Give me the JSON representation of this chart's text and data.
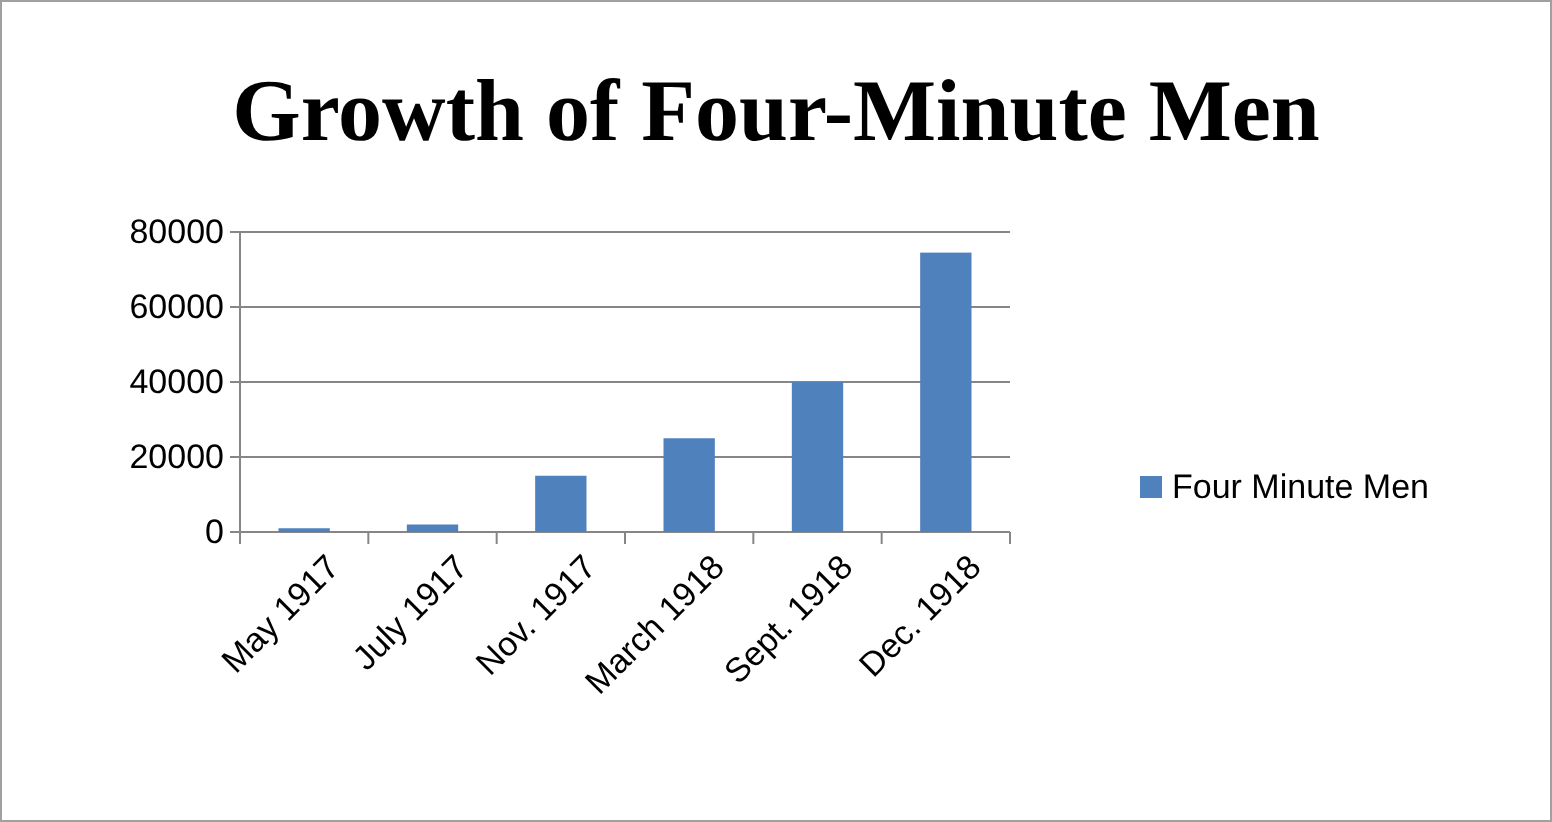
{
  "chart_data": {
    "type": "bar",
    "title": "Growth of Four-Minute Men",
    "categories": [
      "May 1917",
      "July 1917",
      "Nov. 1917",
      "March 1918",
      "Sept. 1918",
      "Dec. 1918"
    ],
    "series": [
      {
        "name": "Four Minute Men",
        "color": "#4f81bd",
        "values": [
          1000,
          2000,
          15000,
          25000,
          40000,
          74500
        ]
      }
    ],
    "ylim": [
      0,
      80000
    ],
    "yticks": [
      0,
      20000,
      40000,
      60000,
      80000
    ],
    "grid": "y",
    "legend": "right"
  }
}
